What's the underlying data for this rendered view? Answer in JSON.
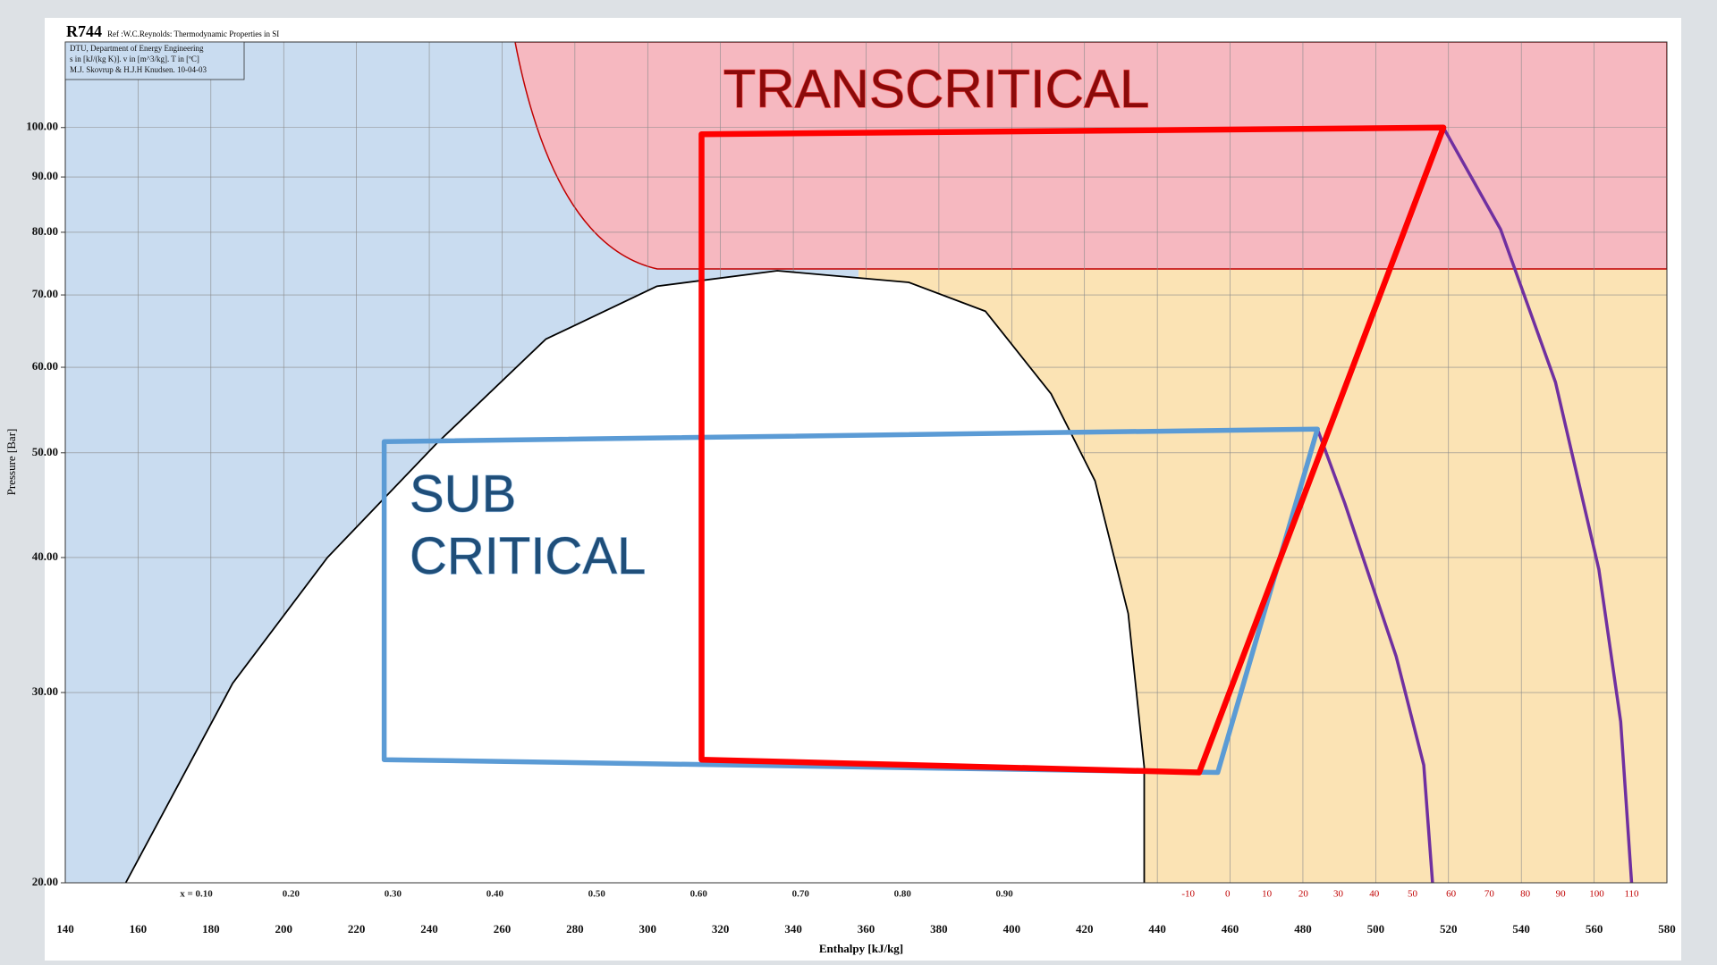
{
  "chart_data": {
    "type": "line",
    "title": "R744",
    "subtitle": "Ref :W.C.Reynolds: Thermodynamic Properties in SI",
    "info_box": [
      "DTU, Department of Energy Engineering",
      "s in [kJ/(kg K)]. v in [m^3/kg]. T in [ºC]",
      "M.J. Skovrup & H.J.H Knudsen. 10-04-03"
    ],
    "xlabel": "Enthalpy [kJ/kg]",
    "ylabel": "Pressure [Bar]",
    "xlim": [
      140,
      580
    ],
    "ylim": [
      20,
      120
    ],
    "log_y": true,
    "grid": true,
    "xticks": [
      140,
      160,
      180,
      200,
      220,
      240,
      260,
      280,
      300,
      320,
      340,
      360,
      380,
      400,
      420,
      440,
      460,
      480,
      500,
      520,
      540,
      560,
      580
    ],
    "yticks": [
      {
        "value": 20,
        "label": "20.00"
      },
      {
        "value": 30,
        "label": "30.00"
      },
      {
        "value": 40,
        "label": "40.00"
      },
      {
        "value": 50,
        "label": "50.00"
      },
      {
        "value": 60,
        "label": "60.00"
      },
      {
        "value": 70,
        "label": "70.00"
      },
      {
        "value": 80,
        "label": "80.00"
      },
      {
        "value": 90,
        "label": "90.00"
      },
      {
        "value": 100,
        "label": "100.00"
      }
    ],
    "series": [
      {
        "color": "#000000",
        "fill": "#ffffff",
        "width": 1.8,
        "x": [
          156.6,
          186,
          212,
          242,
          272,
          302.5,
          335.6,
          371.7,
          392.8,
          410.8,
          422.9,
          432,
          436.4,
          436.4
        ],
        "values": [
          20,
          30.6,
          40,
          51,
          63.7,
          71.3,
          73.7,
          71.9,
          67.6,
          56.7,
          47.1,
          35.5,
          25.6,
          20
        ]
      },
      {
        "color": "#7030a0",
        "width": 3.5,
        "x": [
          484,
          491.5,
          505.6,
          513.2,
          515.6
        ],
        "values": [
          52.6,
          44.9,
          32.4,
          25.7,
          20
        ]
      },
      {
        "color": "#7030a0",
        "width": 3.5,
        "x": [
          518.6,
          534.3,
          549.4,
          561.3,
          567.3,
          570.3
        ],
        "values": [
          100,
          80.5,
          58.1,
          39,
          28.2,
          20
        ]
      },
      {
        "color": "#5b9bd5",
        "width": 5.5,
        "closed": true,
        "x": [
          227.6,
          484,
          456.6,
          227.6
        ],
        "values": [
          51.2,
          52.6,
          25.3,
          26
        ]
      },
      {
        "color": "#ff0000",
        "width": 6.5,
        "closed": true,
        "x": [
          314.8,
          518.6,
          451.5,
          314.8
        ],
        "values": [
          98.6,
          100,
          25.3,
          26
        ]
      }
    ],
    "quality_labels": {
      "h": [
        176,
        202,
        230,
        258,
        286,
        314,
        342,
        370,
        398
      ],
      "labels": [
        "x = 0.10",
        "0.20",
        "0.30",
        "0.40",
        "0.50",
        "0.60",
        "0.70",
        "0.80",
        "0.90"
      ]
    },
    "temperature_labels": {
      "h": [
        448.5,
        459.3,
        470.1,
        480.1,
        489.7,
        499.6,
        510.1,
        520.7,
        531.2,
        541.1,
        550.8,
        560.7,
        570.3
      ],
      "labels": [
        -10,
        0,
        10,
        20,
        30,
        40,
        50,
        60,
        70,
        80,
        90,
        100,
        110
      ]
    },
    "annotations": [
      {
        "lines": [
          "TRANSCRITICAL"
        ],
        "color": "#8b0a0a",
        "outline": "#ff5050"
      },
      {
        "lines": [
          "SUB",
          "CRITICAL"
        ],
        "color": "#1f4e79",
        "outline": "#9dc3e6"
      }
    ]
  }
}
